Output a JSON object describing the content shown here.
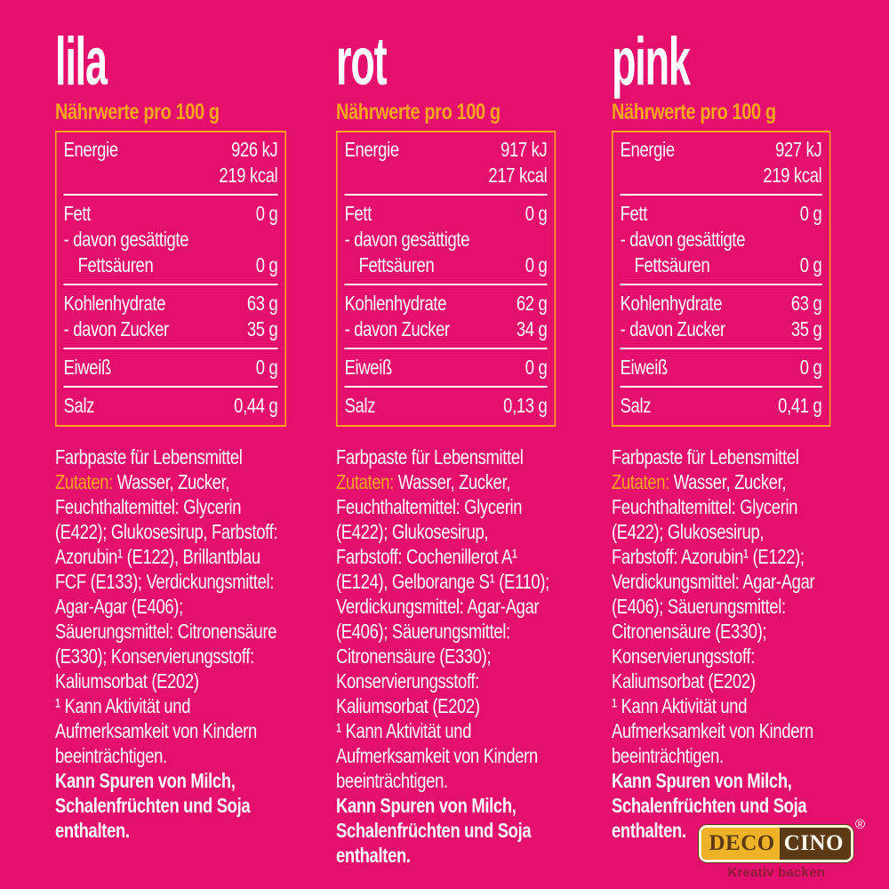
{
  "page": {
    "background": "#E50F6D",
    "accent": "#F8A41D",
    "text_color": "#FFFFFF"
  },
  "columns": [
    {
      "title": "lila",
      "nutrition": {
        "heading": "Nährwerte pro 100 g",
        "energy_label": "Energie",
        "energy_kj": "926 kJ",
        "energy_kcal": "219 kcal",
        "fat_label": "Fett",
        "fat_value": "0 g",
        "satfat_label_line1": "- davon gesättigte",
        "satfat_label_line2": "Fettsäuren",
        "satfat_value": "0 g",
        "carbs_label": "Kohlenhydrate",
        "carbs_value": "63 g",
        "sugar_label": "- davon Zucker",
        "sugar_value": "35 g",
        "protein_label": "Eiweiß",
        "protein_value": "0 g",
        "salt_label": "Salz",
        "salt_value": "0,44 g"
      },
      "product_line": "Farbpaste für Lebensmittel",
      "zutaten_label": "Zutaten:",
      "ingredients_text": "Wasser, Zucker, Feuchthaltemittel: Glycerin (E422); Glukosesirup, Farbstoff: Azorubin¹ (E122), Brillantblau FCF (E133); Verdickungsmittel: Agar-Agar (E406); Säuerungsmittel: Citronensäure (E330); Konservierungsstoff: Kaliumsorbat (E202)",
      "footnote": "¹ Kann Aktivität und Aufmerksamkeit von Kindern beeinträchtigen.",
      "allergy": "Kann Spuren von Milch, Schalenfrüchten und Soja enthalten."
    },
    {
      "title": "rot",
      "nutrition": {
        "heading": "Nährwerte pro 100 g",
        "energy_label": "Energie",
        "energy_kj": "917 kJ",
        "energy_kcal": "217 kcal",
        "fat_label": "Fett",
        "fat_value": "0 g",
        "satfat_label_line1": "- davon gesättigte",
        "satfat_label_line2": "Fettsäuren",
        "satfat_value": "0 g",
        "carbs_label": "Kohlenhydrate",
        "carbs_value": "62 g",
        "sugar_label": "- davon Zucker",
        "sugar_value": "34 g",
        "protein_label": "Eiweiß",
        "protein_value": "0 g",
        "salt_label": "Salz",
        "salt_value": "0,13 g"
      },
      "product_line": "Farbpaste für Lebensmittel",
      "zutaten_label": "Zutaten:",
      "ingredients_text": "Wasser, Zucker, Feuchthaltemittel: Glycerin (E422); Glukosesirup, Farbstoff: Cochenillerot A¹ (E124), Gelborange S¹ (E110); Verdickungsmittel: Agar-Agar (E406); Säuerungsmittel: Citronensäure (E330); Konservierungsstoff: Kaliumsorbat (E202)",
      "footnote": "¹ Kann Aktivität und Aufmerksamkeit von Kindern beeinträchtigen.",
      "allergy": "Kann Spuren von Milch, Schalenfrüchten und Soja enthalten."
    },
    {
      "title": "pink",
      "nutrition": {
        "heading": "Nährwerte pro 100 g",
        "energy_label": "Energie",
        "energy_kj": "927 kJ",
        "energy_kcal": "219 kcal",
        "fat_label": "Fett",
        "fat_value": "0 g",
        "satfat_label_line1": "- davon gesättigte",
        "satfat_label_line2": "Fettsäuren",
        "satfat_value": "0 g",
        "carbs_label": "Kohlenhydrate",
        "carbs_value": "63 g",
        "sugar_label": "- davon Zucker",
        "sugar_value": "35 g",
        "protein_label": "Eiweiß",
        "protein_value": "0 g",
        "salt_label": "Salz",
        "salt_value": "0,41 g"
      },
      "product_line": "Farbpaste für Lebensmittel",
      "zutaten_label": "Zutaten:",
      "ingredients_text": "Wasser, Zucker, Feuchthaltemittel: Glycerin (E422); Glukosesirup, Farbstoff: Azorubin¹ (E122); Verdickungsmittel: Agar-Agar (E406); Säuerungsmittel: Citronensäure (E330); Konservierungsstoff: Kaliumsorbat (E202)",
      "footnote": "¹ Kann Aktivität und Aufmerksamkeit von Kindern beeinträchtigen.",
      "allergy": "Kann Spuren von Milch, Schalenfrüchten und Soja enthalten."
    }
  ],
  "logo": {
    "brand_left": "DECO",
    "brand_right": "CINO",
    "registered_mark": "®",
    "tagline": "Kreativ backen",
    "gold": "#EEB227",
    "brown": "#5C3A16",
    "tagline_color": "#8F1B38"
  }
}
